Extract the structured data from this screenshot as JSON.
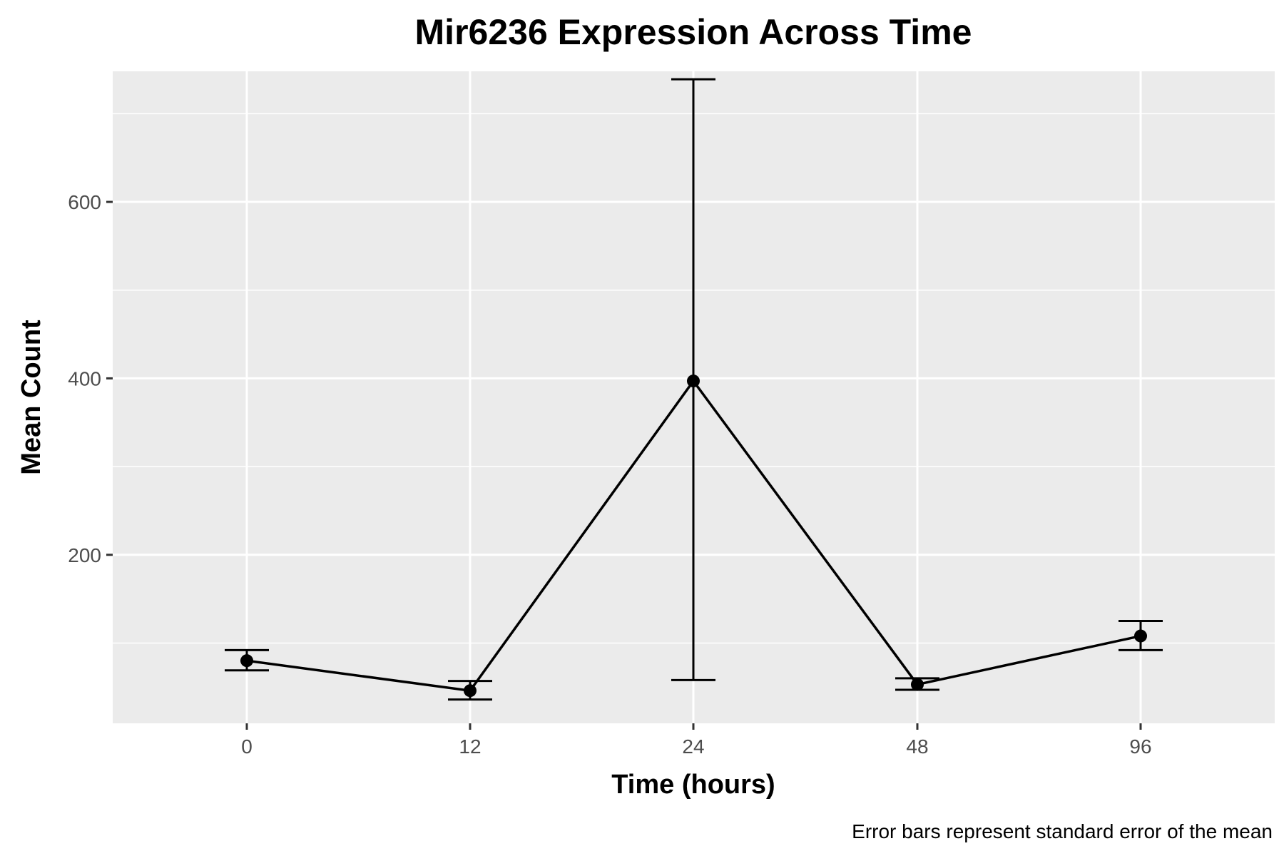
{
  "chart_data": {
    "type": "line",
    "title": "Mir6236 Expression Across Time",
    "xlabel": "Time (hours)",
    "ylabel": "Mean Count",
    "caption": "Error bars represent standard error of the mean",
    "categories": [
      "0",
      "12",
      "24",
      "48",
      "96"
    ],
    "series": [
      {
        "values": [
          80,
          46,
          397,
          53,
          108
        ],
        "error_low": [
          69,
          36,
          58,
          47,
          92
        ],
        "error_high": [
          92,
          57,
          739,
          60,
          125
        ]
      }
    ],
    "y_ticks": [
      200,
      400,
      600
    ],
    "ylim": [
      9,
      748
    ],
    "grid": true,
    "colors": {
      "panel": "#ebebeb",
      "grid": "#ffffff",
      "line": "#000000",
      "tick_text": "#4d4d4d"
    }
  }
}
